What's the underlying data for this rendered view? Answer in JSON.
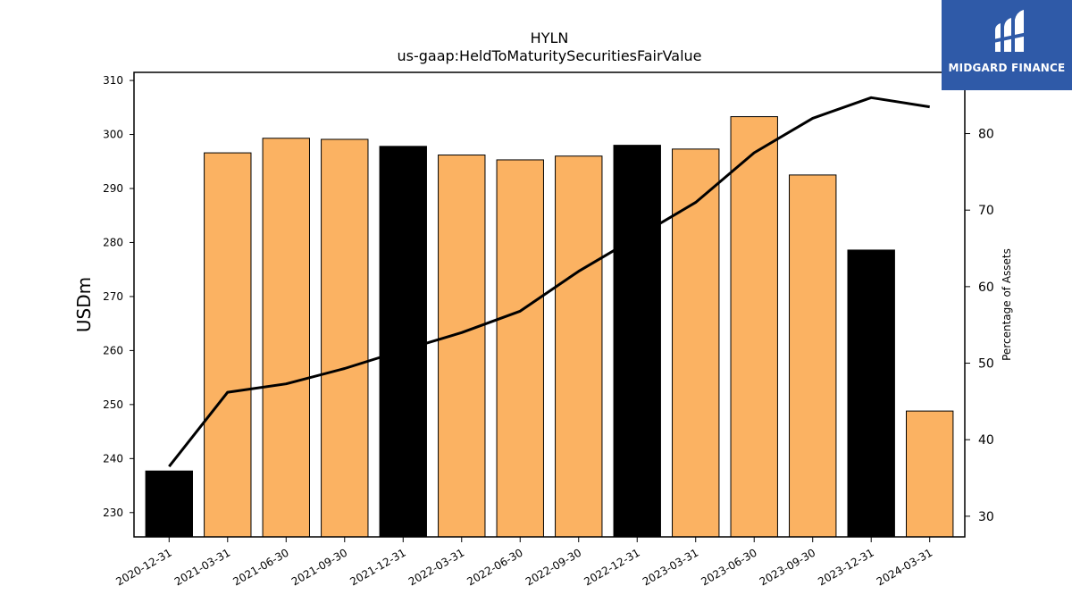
{
  "chart_data": {
    "type": "bar",
    "title": "HYLN",
    "subtitle": "us-gaap:HeldToMaturitySecuritiesFairValue",
    "ylabel": "USDm",
    "y2label": "Percentage of Assets",
    "categories": [
      "2020-12-31",
      "2021-03-31",
      "2021-06-30",
      "2021-09-30",
      "2021-12-31",
      "2022-03-31",
      "2022-06-30",
      "2022-09-30",
      "2022-12-31",
      "2023-03-31",
      "2023-06-30",
      "2023-09-30",
      "2023-12-31",
      "2024-03-31"
    ],
    "series": [
      {
        "type": "bar",
        "axis": "left",
        "values": [
          237.7,
          296.6,
          299.3,
          299.1,
          297.8,
          296.2,
          295.3,
          296.0,
          298.0,
          297.3,
          303.3,
          292.5,
          278.6,
          248.8
        ],
        "highlight": [
          true,
          false,
          false,
          false,
          true,
          false,
          false,
          false,
          true,
          false,
          false,
          false,
          true,
          false
        ]
      },
      {
        "type": "line",
        "axis": "right",
        "values": [
          36.5,
          46.2,
          47.3,
          49.3,
          51.7,
          54.0,
          56.8,
          62.0,
          66.5,
          71.0,
          77.5,
          82.0,
          84.7,
          83.5
        ]
      }
    ],
    "ylim": [
      225.5,
      311.5
    ],
    "y2lim": [
      27.3,
      88.0
    ],
    "yticks": [
      230,
      240,
      250,
      260,
      270,
      280,
      290,
      300,
      310
    ],
    "y2ticks": [
      30,
      40,
      50,
      60,
      70,
      80
    ],
    "colors": {
      "bar": "#fbb262",
      "highlight": "#000000",
      "line": "#000000"
    },
    "grid": false
  },
  "logo": {
    "text": "MIDGARD FINANCE"
  }
}
